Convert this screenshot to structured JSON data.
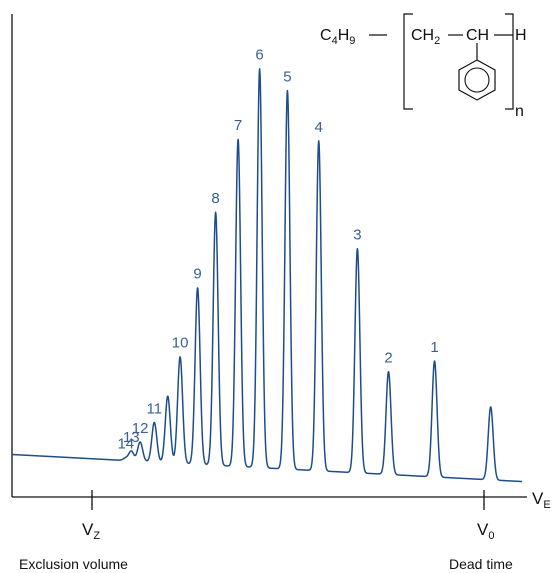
{
  "chart_data": {
    "type": "line",
    "title": "",
    "xlabel": "V",
    "xlabel_subscript": "E",
    "ylabel": "",
    "grid": false,
    "x_markers": [
      {
        "id": "vz",
        "label": "V",
        "subscript": "Z",
        "caption": "Exclusion volume"
      },
      {
        "id": "v0",
        "label": "V",
        "subscript": "0",
        "caption": "Dead time"
      }
    ],
    "baseline": {
      "start": 0.088,
      "end": 0.032
    },
    "peaks": [
      {
        "label": "14",
        "x": 14.8,
        "height": 0.005
      },
      {
        "label": "13",
        "x": 17.8,
        "height": 0.02
      },
      {
        "label": "12",
        "x": 22.6,
        "height": 0.04
      },
      {
        "label": "11",
        "x": 30.3,
        "height": 0.082
      },
      {
        "label": "",
        "x": 37.6,
        "height": 0.138
      },
      {
        "label": "10",
        "x": 44.3,
        "height": 0.221
      },
      {
        "label": "9",
        "x": 53.8,
        "height": 0.366
      },
      {
        "label": "8",
        "x": 63.6,
        "height": 0.524
      },
      {
        "label": "7",
        "x": 75.8,
        "height": 0.678
      },
      {
        "label": "6",
        "x": 87.5,
        "height": 0.826
      },
      {
        "label": "5",
        "x": 102.6,
        "height": 0.784
      },
      {
        "label": "4",
        "x": 119.6,
        "height": 0.683
      },
      {
        "label": "3",
        "x": 140.6,
        "height": 0.464
      },
      {
        "label": "2",
        "x": 157.5,
        "height": 0.213
      },
      {
        "label": "1",
        "x": 182.5,
        "height": 0.24
      },
      {
        "label": "",
        "x": 213.0,
        "height": 0.151
      }
    ],
    "xlim": [
      -47,
      230
    ],
    "ylim": [
      0,
      1
    ]
  },
  "structure": {
    "left_group": "C",
    "left_sub1": "4",
    "left_h": "H",
    "left_sub2": "9",
    "unit1": "CH",
    "unit1_sub": "2",
    "unit2": "CH",
    "end_group": "H",
    "repeat": "n"
  }
}
